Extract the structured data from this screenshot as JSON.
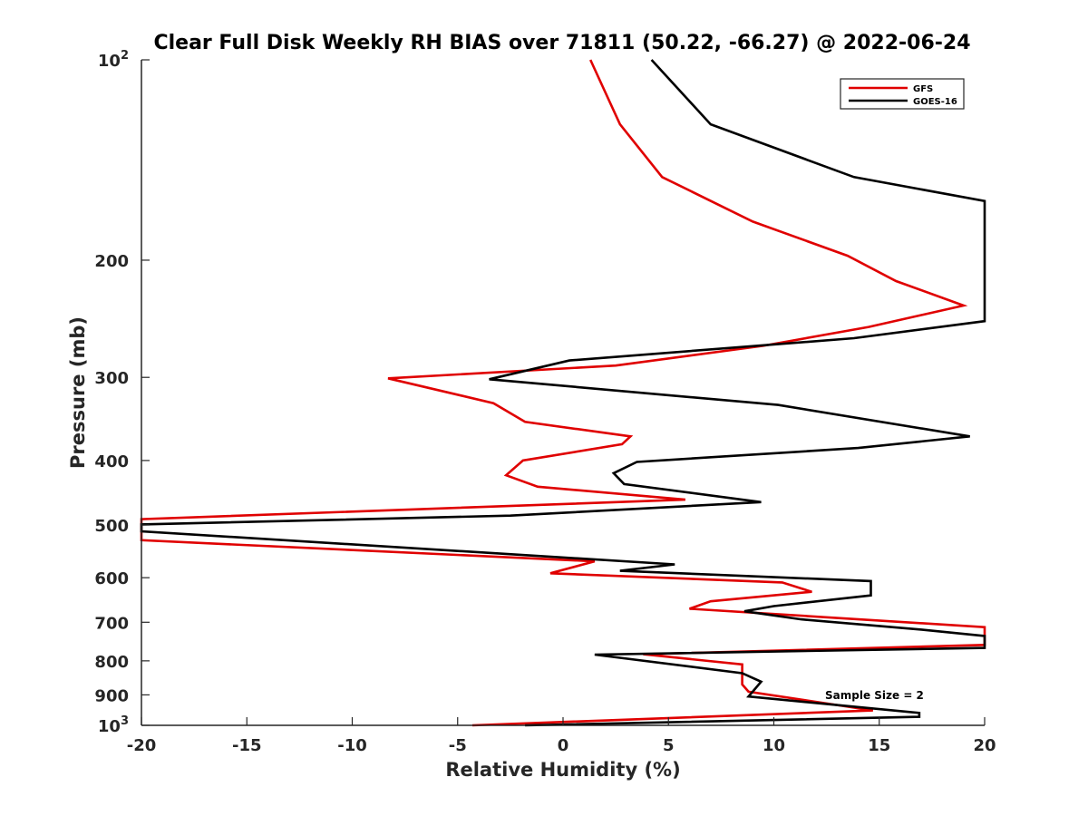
{
  "chart_data": {
    "type": "line",
    "title": "Clear Full Disk Weekly RH BIAS over 71811 (50.22, -66.27) @ 2022-06-24",
    "xlabel": "Relative Humidity (%)",
    "ylabel": "Pressure (mb)",
    "xlim": [
      -20,
      20
    ],
    "ylim": [
      100,
      1000
    ],
    "y_scale": "log",
    "y_inverted": true,
    "grid": false,
    "legend_position": "top-right",
    "x_ticks": [
      "-20",
      "-15",
      "-10",
      "-5",
      "0",
      "5",
      "10",
      "15",
      "20"
    ],
    "y_ticks": [
      {
        "value": 100,
        "label": "10",
        "sup": "2"
      },
      {
        "value": 200,
        "label": "200",
        "sup": ""
      },
      {
        "value": 300,
        "label": "300",
        "sup": ""
      },
      {
        "value": 400,
        "label": "400",
        "sup": ""
      },
      {
        "value": 500,
        "label": "500",
        "sup": ""
      },
      {
        "value": 600,
        "label": "600",
        "sup": ""
      },
      {
        "value": 700,
        "label": "700",
        "sup": ""
      },
      {
        "value": 800,
        "label": "800",
        "sup": ""
      },
      {
        "value": 900,
        "label": "900",
        "sup": ""
      },
      {
        "value": 1000,
        "label": "10",
        "sup": "3"
      }
    ],
    "annotation": "Sample Size = 2",
    "series": [
      {
        "name": "GFS",
        "color": "#e00000",
        "points": [
          {
            "x": 1.3,
            "p": 100
          },
          {
            "x": 2.7,
            "p": 125
          },
          {
            "x": 4.7,
            "p": 150
          },
          {
            "x": 9.0,
            "p": 175
          },
          {
            "x": 13.5,
            "p": 197
          },
          {
            "x": 15.8,
            "p": 215
          },
          {
            "x": 19.0,
            "p": 234
          },
          {
            "x": 14.5,
            "p": 252
          },
          {
            "x": 9.5,
            "p": 269
          },
          {
            "x": 2.5,
            "p": 288
          },
          {
            "x": -8.3,
            "p": 301
          },
          {
            "x": -3.3,
            "p": 328
          },
          {
            "x": -1.8,
            "p": 350
          },
          {
            "x": 3.2,
            "p": 368
          },
          {
            "x": 2.8,
            "p": 378
          },
          {
            "x": -1.9,
            "p": 400
          },
          {
            "x": -2.7,
            "p": 421
          },
          {
            "x": -1.2,
            "p": 438
          },
          {
            "x": 5.8,
            "p": 458
          },
          {
            "x": -20.0,
            "p": 490
          },
          {
            "x": -20.0,
            "p": 527
          },
          {
            "x": 1.5,
            "p": 567
          },
          {
            "x": -0.6,
            "p": 591
          },
          {
            "x": 10.4,
            "p": 610
          },
          {
            "x": 11.8,
            "p": 630
          },
          {
            "x": 7.0,
            "p": 651
          },
          {
            "x": 6.0,
            "p": 668
          },
          {
            "x": 20.0,
            "p": 712
          },
          {
            "x": 20.0,
            "p": 757
          },
          {
            "x": 3.8,
            "p": 782
          },
          {
            "x": 8.5,
            "p": 810
          },
          {
            "x": 8.5,
            "p": 868
          },
          {
            "x": 8.8,
            "p": 890
          },
          {
            "x": 14.7,
            "p": 950
          },
          {
            "x": -4.3,
            "p": 1000
          }
        ]
      },
      {
        "name": "GOES-16",
        "color": "#000000",
        "points": [
          {
            "x": 4.2,
            "p": 100
          },
          {
            "x": 7.0,
            "p": 125
          },
          {
            "x": 13.8,
            "p": 150
          },
          {
            "x": 20.0,
            "p": 163
          },
          {
            "x": 20.0,
            "p": 247
          },
          {
            "x": 13.8,
            "p": 262
          },
          {
            "x": 0.3,
            "p": 283
          },
          {
            "x": -3.5,
            "p": 302
          },
          {
            "x": 10.2,
            "p": 330
          },
          {
            "x": 19.3,
            "p": 368
          },
          {
            "x": 14.0,
            "p": 383
          },
          {
            "x": 3.5,
            "p": 402
          },
          {
            "x": 2.4,
            "p": 418
          },
          {
            "x": 2.9,
            "p": 434
          },
          {
            "x": 9.4,
            "p": 462
          },
          {
            "x": -2.5,
            "p": 484
          },
          {
            "x": -20.0,
            "p": 499
          },
          {
            "x": -20.0,
            "p": 511
          },
          {
            "x": 5.3,
            "p": 573
          },
          {
            "x": 2.7,
            "p": 586
          },
          {
            "x": 14.6,
            "p": 607
          },
          {
            "x": 14.6,
            "p": 638
          },
          {
            "x": 10.0,
            "p": 662
          },
          {
            "x": 8.6,
            "p": 674
          },
          {
            "x": 11.3,
            "p": 693
          },
          {
            "x": 17.0,
            "p": 718
          },
          {
            "x": 20.0,
            "p": 734
          },
          {
            "x": 20.0,
            "p": 765
          },
          {
            "x": 1.5,
            "p": 783
          },
          {
            "x": 8.5,
            "p": 835
          },
          {
            "x": 9.4,
            "p": 860
          },
          {
            "x": 8.8,
            "p": 905
          },
          {
            "x": 16.9,
            "p": 958
          },
          {
            "x": 16.9,
            "p": 971
          },
          {
            "x": -1.8,
            "p": 1000
          }
        ]
      }
    ]
  }
}
